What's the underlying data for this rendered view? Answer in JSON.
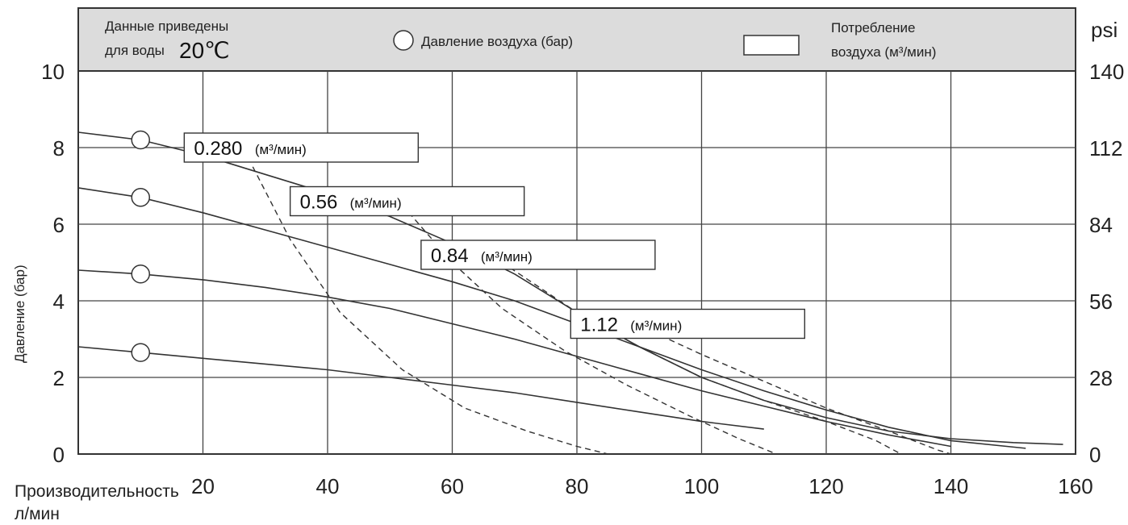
{
  "chart_data": {
    "type": "line",
    "header": {
      "note_line1": "Данные приведены",
      "note_line2": "для воды",
      "note_temp": "20℃",
      "pressure_legend": "Давление воздуха (бар)",
      "consumption_legend_line1": "Потребление",
      "consumption_legend_line2": "воздуха (м³/мин)"
    },
    "xlabel_line1": "Производительность",
    "xlabel_line2": "л/мин",
    "ylabel": "Давление (бар)",
    "y2label": "psi",
    "xlim": [
      0,
      160
    ],
    "ylim": [
      0,
      10
    ],
    "x_ticks": [
      "20",
      "40",
      "60",
      "80",
      "100",
      "120",
      "140",
      "160"
    ],
    "y_ticks": [
      "0",
      "2",
      "4",
      "6",
      "8",
      "10"
    ],
    "y2_ticks": [
      "0",
      "28",
      "56",
      "84",
      "112",
      "140"
    ],
    "grid": true,
    "air_pressure_markers": [
      {
        "x": 10,
        "y": 8.2
      },
      {
        "x": 10,
        "y": 6.7
      },
      {
        "x": 10,
        "y": 4.7
      },
      {
        "x": 10,
        "y": 2.65
      }
    ],
    "series": [
      {
        "style": "solid",
        "points": [
          [
            0,
            8.4
          ],
          [
            10,
            8.2
          ],
          [
            20,
            7.8
          ],
          [
            30,
            7.3
          ],
          [
            40,
            6.8
          ],
          [
            50,
            6.2
          ],
          [
            60,
            5.5
          ],
          [
            70,
            4.7
          ],
          [
            80,
            3.7
          ],
          [
            90,
            2.8
          ],
          [
            100,
            2.0
          ],
          [
            110,
            1.4
          ],
          [
            120,
            0.95
          ],
          [
            130,
            0.6
          ],
          [
            140,
            0.4
          ],
          [
            150,
            0.3
          ],
          [
            158,
            0.25
          ]
        ]
      },
      {
        "style": "solid",
        "points": [
          [
            0,
            6.95
          ],
          [
            10,
            6.7
          ],
          [
            20,
            6.3
          ],
          [
            30,
            5.85
          ],
          [
            40,
            5.4
          ],
          [
            50,
            4.95
          ],
          [
            60,
            4.5
          ],
          [
            70,
            4.0
          ],
          [
            80,
            3.4
          ],
          [
            90,
            2.8
          ],
          [
            100,
            2.2
          ],
          [
            110,
            1.65
          ],
          [
            120,
            1.15
          ],
          [
            130,
            0.7
          ],
          [
            140,
            0.35
          ],
          [
            152,
            0.15
          ]
        ]
      },
      {
        "style": "solid",
        "points": [
          [
            0,
            4.8
          ],
          [
            10,
            4.7
          ],
          [
            20,
            4.55
          ],
          [
            30,
            4.35
          ],
          [
            40,
            4.1
          ],
          [
            50,
            3.8
          ],
          [
            60,
            3.4
          ],
          [
            70,
            3.0
          ],
          [
            80,
            2.55
          ],
          [
            90,
            2.1
          ],
          [
            100,
            1.65
          ],
          [
            110,
            1.25
          ],
          [
            120,
            0.85
          ],
          [
            130,
            0.5
          ],
          [
            140,
            0.2
          ]
        ]
      },
      {
        "style": "solid",
        "points": [
          [
            0,
            2.8
          ],
          [
            10,
            2.65
          ],
          [
            20,
            2.5
          ],
          [
            30,
            2.35
          ],
          [
            40,
            2.2
          ],
          [
            50,
            2.0
          ],
          [
            60,
            1.8
          ],
          [
            70,
            1.6
          ],
          [
            80,
            1.35
          ],
          [
            90,
            1.1
          ],
          [
            100,
            0.85
          ],
          [
            110,
            0.65
          ]
        ]
      }
    ],
    "consumption_curves": [
      {
        "label_value": "0.280",
        "label_unit": "(м³/мин)",
        "label_x": 17,
        "label_y": 8.0,
        "points": [
          [
            28,
            7.5
          ],
          [
            34,
            5.6
          ],
          [
            42,
            3.7
          ],
          [
            52,
            2.2
          ],
          [
            62,
            1.2
          ],
          [
            72,
            0.6
          ],
          [
            80,
            0.2
          ],
          [
            85,
            0
          ]
        ]
      },
      {
        "label_value": "0.56",
        "label_unit": "(м³/мин)",
        "label_x": 34,
        "label_y": 6.6,
        "points": [
          [
            52,
            6.5
          ],
          [
            60,
            5.0
          ],
          [
            68,
            3.8
          ],
          [
            78,
            2.7
          ],
          [
            88,
            1.8
          ],
          [
            98,
            1.0
          ],
          [
            106,
            0.4
          ],
          [
            112,
            0
          ]
        ]
      },
      {
        "label_value": "0.84",
        "label_unit": "(м³/мин)",
        "label_x": 55,
        "label_y": 5.2,
        "points": [
          [
            68,
            5.0
          ],
          [
            80,
            3.7
          ],
          [
            90,
            2.8
          ],
          [
            100,
            2.0
          ],
          [
            110,
            1.4
          ],
          [
            120,
            0.85
          ],
          [
            128,
            0.35
          ],
          [
            132,
            0
          ]
        ]
      },
      {
        "label_value": "1.12",
        "label_unit": "(м³/мин)",
        "label_x": 79,
        "label_y": 3.4,
        "points": [
          [
            92,
            3.2
          ],
          [
            100,
            2.6
          ],
          [
            110,
            1.9
          ],
          [
            120,
            1.2
          ],
          [
            130,
            0.6
          ],
          [
            138,
            0.1
          ],
          [
            140,
            0
          ]
        ]
      }
    ]
  }
}
